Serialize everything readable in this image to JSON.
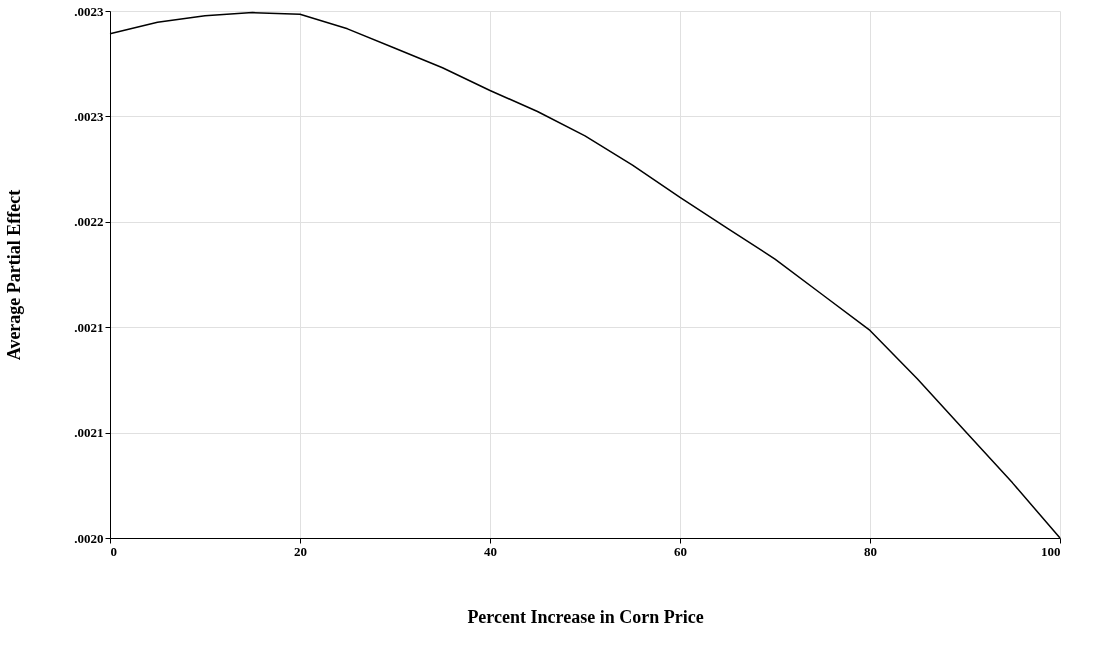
{
  "chart_data": {
    "type": "line",
    "xlabel": "Percent Increase in Corn Price",
    "ylabel": "Average Partial Effect",
    "x": [
      0,
      5,
      10,
      15,
      20,
      25,
      30,
      35,
      40,
      45,
      50,
      55,
      60,
      65,
      70,
      75,
      80,
      85,
      90,
      95,
      100
    ],
    "series": [
      {
        "color": "#000000",
        "values": [
          0.002311,
          0.002318,
          0.002322,
          0.002324,
          0.002323,
          0.002314,
          0.002302,
          0.00229,
          0.002276,
          0.002263,
          0.002248,
          0.00223,
          0.00221,
          0.002191,
          0.002172,
          0.00215,
          0.002128,
          0.002098,
          0.002066,
          0.002034,
          0.002
        ]
      }
    ],
    "xlim": [
      0,
      100
    ],
    "xticks": [
      0,
      20,
      40,
      60,
      80,
      100
    ],
    "ylim": [
      0.002,
      0.002325
    ],
    "yticks": [
      {
        "value": 0.002,
        "label": ".0020"
      },
      {
        "value": 0.002065,
        "label": ".0021"
      },
      {
        "value": 0.00213,
        "label": ".0021"
      },
      {
        "value": 0.002195,
        "label": ".0022"
      },
      {
        "value": 0.00226,
        "label": ".0023"
      },
      {
        "value": 0.002325,
        "label": ".0023"
      }
    ],
    "grid": true,
    "marker": "none",
    "line_style": "solid"
  }
}
